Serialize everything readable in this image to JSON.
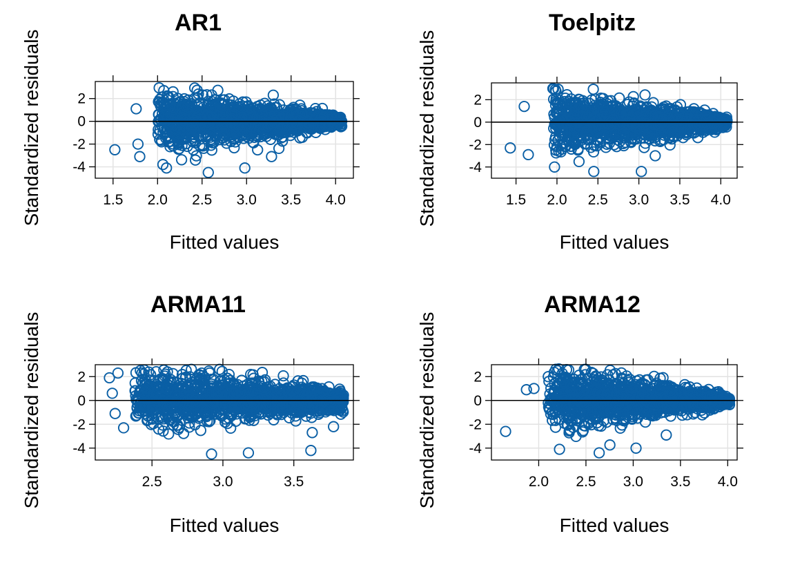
{
  "chart_data": [
    {
      "type": "scatter",
      "title": "AR1",
      "xlabel": "Fitted values",
      "ylabel": "Standardized residuals",
      "xlim": [
        1.3,
        4.2
      ],
      "ylim": [
        -5.0,
        3.5
      ],
      "xticks": [
        "1.5",
        "2.0",
        "2.5",
        "3.0",
        "3.5",
        "4.0"
      ],
      "yticks": [
        "-4",
        "-2",
        "0",
        "2"
      ],
      "grid": true,
      "reference_line_y": 0,
      "x_range_of_points": [
        1.52,
        4.07
      ],
      "outliers": [
        {
          "x": 1.52,
          "y": -2.5
        },
        {
          "x": 1.76,
          "y": 1.1
        },
        {
          "x": 1.78,
          "y": -2.0
        },
        {
          "x": 1.8,
          "y": -3.1
        },
        {
          "x": 2.07,
          "y": 2.7
        },
        {
          "x": 2.06,
          "y": -3.8
        },
        {
          "x": 2.1,
          "y": -4.1
        },
        {
          "x": 2.57,
          "y": -4.5
        },
        {
          "x": 2.98,
          "y": -4.1
        },
        {
          "x": 3.28,
          "y": -3.1
        },
        {
          "x": 3.3,
          "y": 2.3
        }
      ]
    },
    {
      "type": "scatter",
      "title": "Toelpitz",
      "xlabel": "Fitted values",
      "ylabel": "Standardized residuals",
      "xlim": [
        1.2,
        4.2
      ],
      "ylim": [
        -5.0,
        3.5
      ],
      "xticks": [
        "1.5",
        "2.0",
        "2.5",
        "3.0",
        "3.5",
        "4.0"
      ],
      "yticks": [
        "-4",
        "-2",
        "0",
        "2"
      ],
      "grid": true,
      "reference_line_y": 0,
      "x_range_of_points": [
        1.43,
        4.08
      ],
      "outliers": [
        {
          "x": 1.43,
          "y": -2.3
        },
        {
          "x": 1.6,
          "y": 1.4
        },
        {
          "x": 1.65,
          "y": -2.9
        },
        {
          "x": 1.95,
          "y": 3.0
        },
        {
          "x": 1.98,
          "y": 2.9
        },
        {
          "x": 1.97,
          "y": -4.0
        },
        {
          "x": 2.45,
          "y": -4.4
        },
        {
          "x": 3.03,
          "y": -4.4
        },
        {
          "x": 3.2,
          "y": -3.0
        }
      ]
    },
    {
      "type": "scatter",
      "title": "ARMA11",
      "xlabel": "Fitted values",
      "ylabel": "Standardized residuals",
      "xlim": [
        2.1,
        3.92
      ],
      "ylim": [
        -5.0,
        3.0
      ],
      "xticks": [
        "2.5",
        "3.0",
        "3.5"
      ],
      "yticks": [
        "-4",
        "-2",
        "0",
        "2"
      ],
      "grid": true,
      "reference_line_y": 0,
      "x_range_of_points": [
        2.18,
        3.85
      ],
      "outliers": [
        {
          "x": 2.2,
          "y": 1.9
        },
        {
          "x": 2.22,
          "y": 0.6
        },
        {
          "x": 2.24,
          "y": -1.1
        },
        {
          "x": 2.3,
          "y": -2.3
        },
        {
          "x": 2.26,
          "y": 2.3
        },
        {
          "x": 2.92,
          "y": -4.5
        },
        {
          "x": 3.18,
          "y": -4.4
        },
        {
          "x": 3.62,
          "y": -4.2
        },
        {
          "x": 3.63,
          "y": -2.7
        },
        {
          "x": 3.78,
          "y": -2.2
        }
      ]
    },
    {
      "type": "scatter",
      "title": "ARMA12",
      "xlabel": "Fitted values",
      "ylabel": "Standardized residuals",
      "xlim": [
        1.5,
        4.1
      ],
      "ylim": [
        -5.0,
        3.0
      ],
      "xticks": [
        "2.0",
        "2.5",
        "3.0",
        "3.5",
        "4.0"
      ],
      "yticks": [
        "-4",
        "-2",
        "0",
        "2"
      ],
      "grid": true,
      "reference_line_y": 0,
      "x_range_of_points": [
        1.65,
        4.02
      ],
      "outliers": [
        {
          "x": 1.65,
          "y": -2.6
        },
        {
          "x": 1.87,
          "y": 0.9
        },
        {
          "x": 1.95,
          "y": 1.0
        },
        {
          "x": 2.22,
          "y": -4.1
        },
        {
          "x": 2.64,
          "y": -4.4
        },
        {
          "x": 3.03,
          "y": -4.0
        },
        {
          "x": 3.35,
          "y": -2.9
        },
        {
          "x": 2.2,
          "y": 2.5
        }
      ]
    }
  ],
  "colors": {
    "points": "#0a5fa5",
    "grid": "#e2e2e2",
    "axis": "#000000",
    "background": "#ffffff"
  }
}
